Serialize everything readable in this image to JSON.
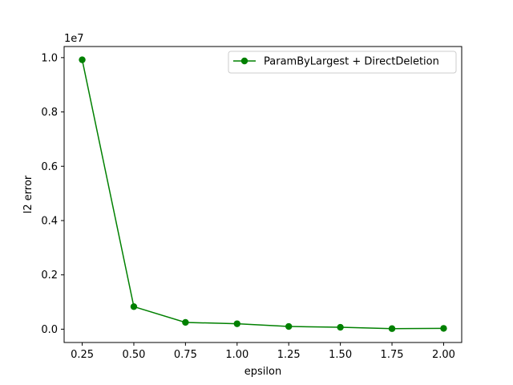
{
  "chart_data": {
    "type": "line",
    "title": "",
    "xlabel": "epsilon",
    "ylabel": "l2 error",
    "y_scale_label": "1e7",
    "y_scale": 10000000,
    "xlim": [
      0.1625,
      2.0875
    ],
    "ylim": [
      -0.049,
      1.0409
    ],
    "x_ticks": [
      0.25,
      0.5,
      0.75,
      1.0,
      1.25,
      1.5,
      1.75,
      2.0
    ],
    "x_tick_labels": [
      "0.25",
      "0.50",
      "0.75",
      "1.00",
      "1.25",
      "1.50",
      "1.75",
      "2.00"
    ],
    "y_ticks": [
      0.0,
      0.2,
      0.4,
      0.6,
      0.8,
      1.0
    ],
    "y_tick_labels": [
      "0.0",
      "0.2",
      "0.4",
      "0.6",
      "0.8",
      "1.0"
    ],
    "grid": false,
    "legend_position": "top-right",
    "series": [
      {
        "name": "ParamByLargest + DirectDeletion",
        "color": "#008000",
        "marker": "circle",
        "x": [
          0.25,
          0.5,
          0.75,
          1.0,
          1.25,
          1.5,
          1.75,
          2.0
        ],
        "y": [
          0.992,
          0.083,
          0.025,
          0.02,
          0.01,
          0.007,
          0.002,
          0.003
        ]
      }
    ]
  }
}
